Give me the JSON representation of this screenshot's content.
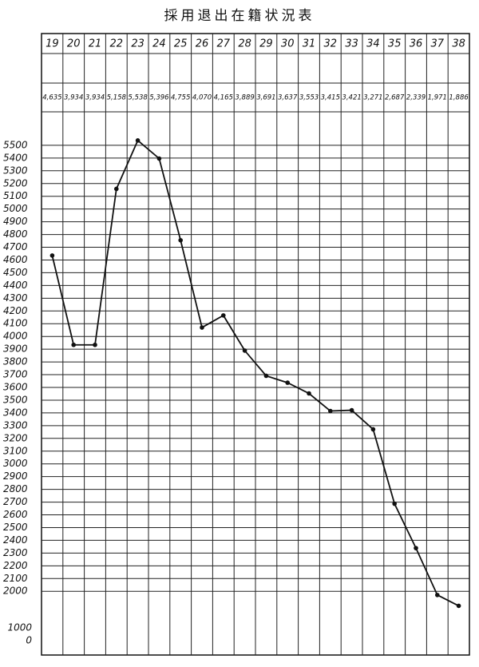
{
  "chart_data": {
    "type": "line",
    "title": "採用退出在籍状況表",
    "categories": [
      "19",
      "20",
      "21",
      "22",
      "23",
      "24",
      "25",
      "26",
      "27",
      "28",
      "29",
      "30",
      "31",
      "32",
      "33",
      "34",
      "35",
      "36",
      "37",
      "38"
    ],
    "series": [
      {
        "color": "#111111",
        "values": [
          4635,
          3934,
          3934,
          5158,
          5538,
          5396,
          4755,
          4070,
          4165,
          3889,
          3691,
          3637,
          3553,
          3415,
          3421,
          3271,
          2687,
          2339,
          1971,
          1886
        ],
        "value_labels": [
          "4,635",
          "3,934",
          "3,934",
          "5,158",
          "5,538",
          "5,396",
          "4,755",
          "4,070",
          "4,165",
          "3,889",
          "3,691",
          "3,637",
          "3,553",
          "3,415",
          "3,421",
          "3,271",
          "2,687",
          "2,339",
          "1,971",
          "1,886"
        ]
      }
    ],
    "ylim": [
      1500,
      5700
    ],
    "yticks": [
      2000,
      2100,
      2200,
      2300,
      2400,
      2500,
      2600,
      2700,
      2800,
      2900,
      3000,
      3100,
      3200,
      3300,
      3400,
      3500,
      3600,
      3700,
      3800,
      3900,
      4000,
      4100,
      4200,
      4300,
      4400,
      4500,
      4600,
      4700,
      4800,
      4900,
      5000,
      5100,
      5200,
      5300,
      5400,
      5500
    ],
    "axis_break_labels": [
      1000,
      0
    ],
    "grid": true
  }
}
